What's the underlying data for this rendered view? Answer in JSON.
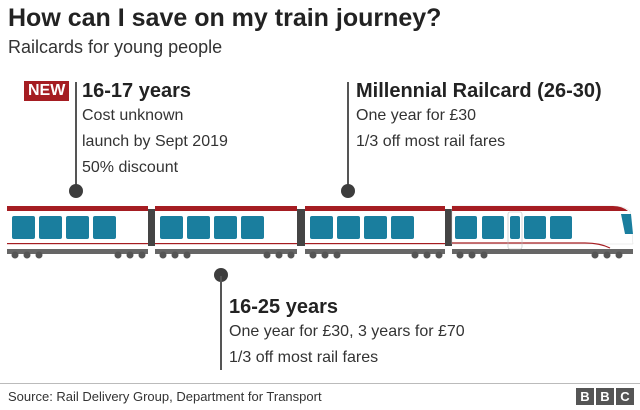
{
  "title": "How can I save on my train journey?",
  "subtitle": "Railcards for young people",
  "callouts": [
    {
      "badge": "NEW",
      "heading": "16-17 years",
      "lines": [
        "Cost unknown",
        "launch by Sept 2019",
        "50% discount"
      ]
    },
    {
      "heading": "Millennial Railcard (26-30)",
      "lines": [
        "One year for £30",
        "1/3 off most rail fares"
      ]
    },
    {
      "heading": "16-25 years",
      "lines": [
        "One year for £30, 3 years for £70",
        "1/3 off most rail fares"
      ]
    }
  ],
  "colors": {
    "roof": "#a51d22",
    "window": "#1a7e9e",
    "base": "#666666",
    "accent": "#a51d22"
  },
  "footer": {
    "source": "Source: Rail Delivery Group, Department for Transport",
    "logo": [
      "B",
      "B",
      "C"
    ]
  }
}
